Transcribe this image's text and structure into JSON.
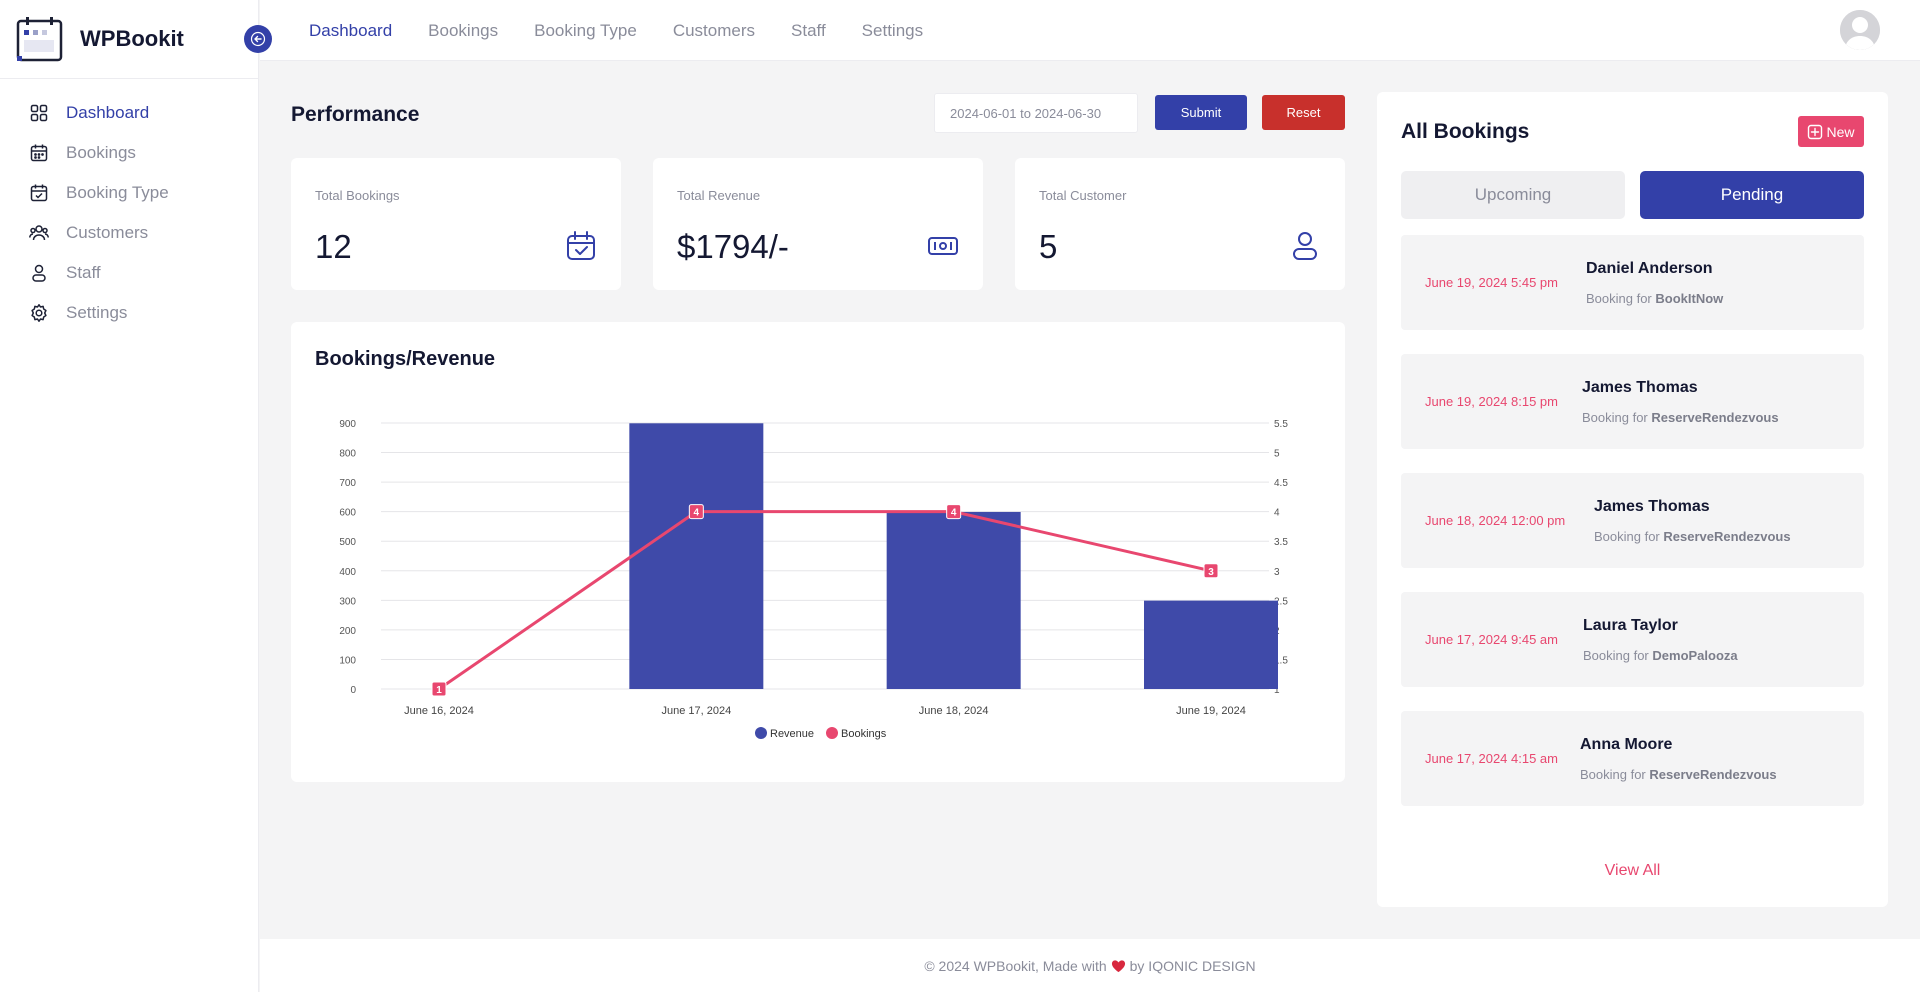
{
  "brand": {
    "name": "WPBookit"
  },
  "sidebar": {
    "items": [
      {
        "label": "Dashboard",
        "icon": "dashboard-grid-icon",
        "active": true
      },
      {
        "label": "Bookings",
        "icon": "calendar-icon"
      },
      {
        "label": "Booking Type",
        "icon": "calendar-check-icon"
      },
      {
        "label": "Customers",
        "icon": "users-icon"
      },
      {
        "label": "Staff",
        "icon": "user-icon"
      },
      {
        "label": "Settings",
        "icon": "gear-icon"
      }
    ]
  },
  "topnav": {
    "tabs": [
      {
        "label": "Dashboard",
        "active": true
      },
      {
        "label": "Bookings"
      },
      {
        "label": "Booking Type"
      },
      {
        "label": "Customers"
      },
      {
        "label": "Staff"
      },
      {
        "label": "Settings"
      }
    ]
  },
  "performance": {
    "title": "Performance",
    "date_range": "2024-06-01 to 2024-06-30",
    "submit_label": "Submit",
    "reset_label": "Reset",
    "stats": [
      {
        "label": "Total Bookings",
        "value": "12",
        "icon": "calendar-check-icon"
      },
      {
        "label": "Total Revenue",
        "value": "$1794/-",
        "icon": "money-icon"
      },
      {
        "label": "Total Customer",
        "value": "5",
        "icon": "user-icon"
      }
    ]
  },
  "chart_data": {
    "type": "bar",
    "title": "Bookings/Revenue",
    "categories": [
      "June 16, 2024",
      "June 17, 2024",
      "June 18, 2024",
      "June 19, 2024"
    ],
    "series": [
      {
        "name": "Revenue",
        "type": "bar",
        "axis": "left",
        "values": [
          0,
          899,
          599,
          299
        ],
        "color": "#3f4aa9"
      },
      {
        "name": "Bookings",
        "type": "line",
        "axis": "right",
        "values": [
          1,
          4,
          4,
          3
        ],
        "color": "#e8476f"
      }
    ],
    "y_left": {
      "min": 0,
      "max": 900,
      "ticks": [
        "0",
        "100",
        "200",
        "300",
        "400",
        "500",
        "600",
        "700",
        "800",
        "900"
      ]
    },
    "y_right": {
      "min": 1,
      "max": 5.5,
      "ticks": [
        "1",
        "1.5",
        "2",
        "2.5",
        "3",
        "3.5",
        "4",
        "4.5",
        "5",
        "5.5"
      ]
    },
    "grid": true,
    "legend_position": "bottom"
  },
  "bookings": {
    "title": "All Bookings",
    "new_label": "New",
    "tab_upcoming": "Upcoming",
    "tab_pending": "Pending",
    "for_prefix": "Booking for",
    "items": [
      {
        "date": "June 19, 2024 5:45 pm",
        "name": "Daniel Anderson",
        "service": "BookItNow"
      },
      {
        "date": "June 19, 2024 8:15 pm",
        "name": "James Thomas",
        "service": "ReserveRendezvous"
      },
      {
        "date": "June 18, 2024 12:00 pm",
        "name": "James Thomas",
        "service": "ReserveRendezvous"
      },
      {
        "date": "June 17, 2024 9:45 am",
        "name": "Laura Taylor",
        "service": "DemoPalooza"
      },
      {
        "date": "June 17, 2024 4:15 am",
        "name": "Anna Moore",
        "service": "ReserveRendezvous"
      }
    ],
    "view_all": "View All"
  },
  "footer": {
    "prefix": "© 2024 WPBookit, Made with",
    "suffix": "by IQONIC DESIGN"
  }
}
